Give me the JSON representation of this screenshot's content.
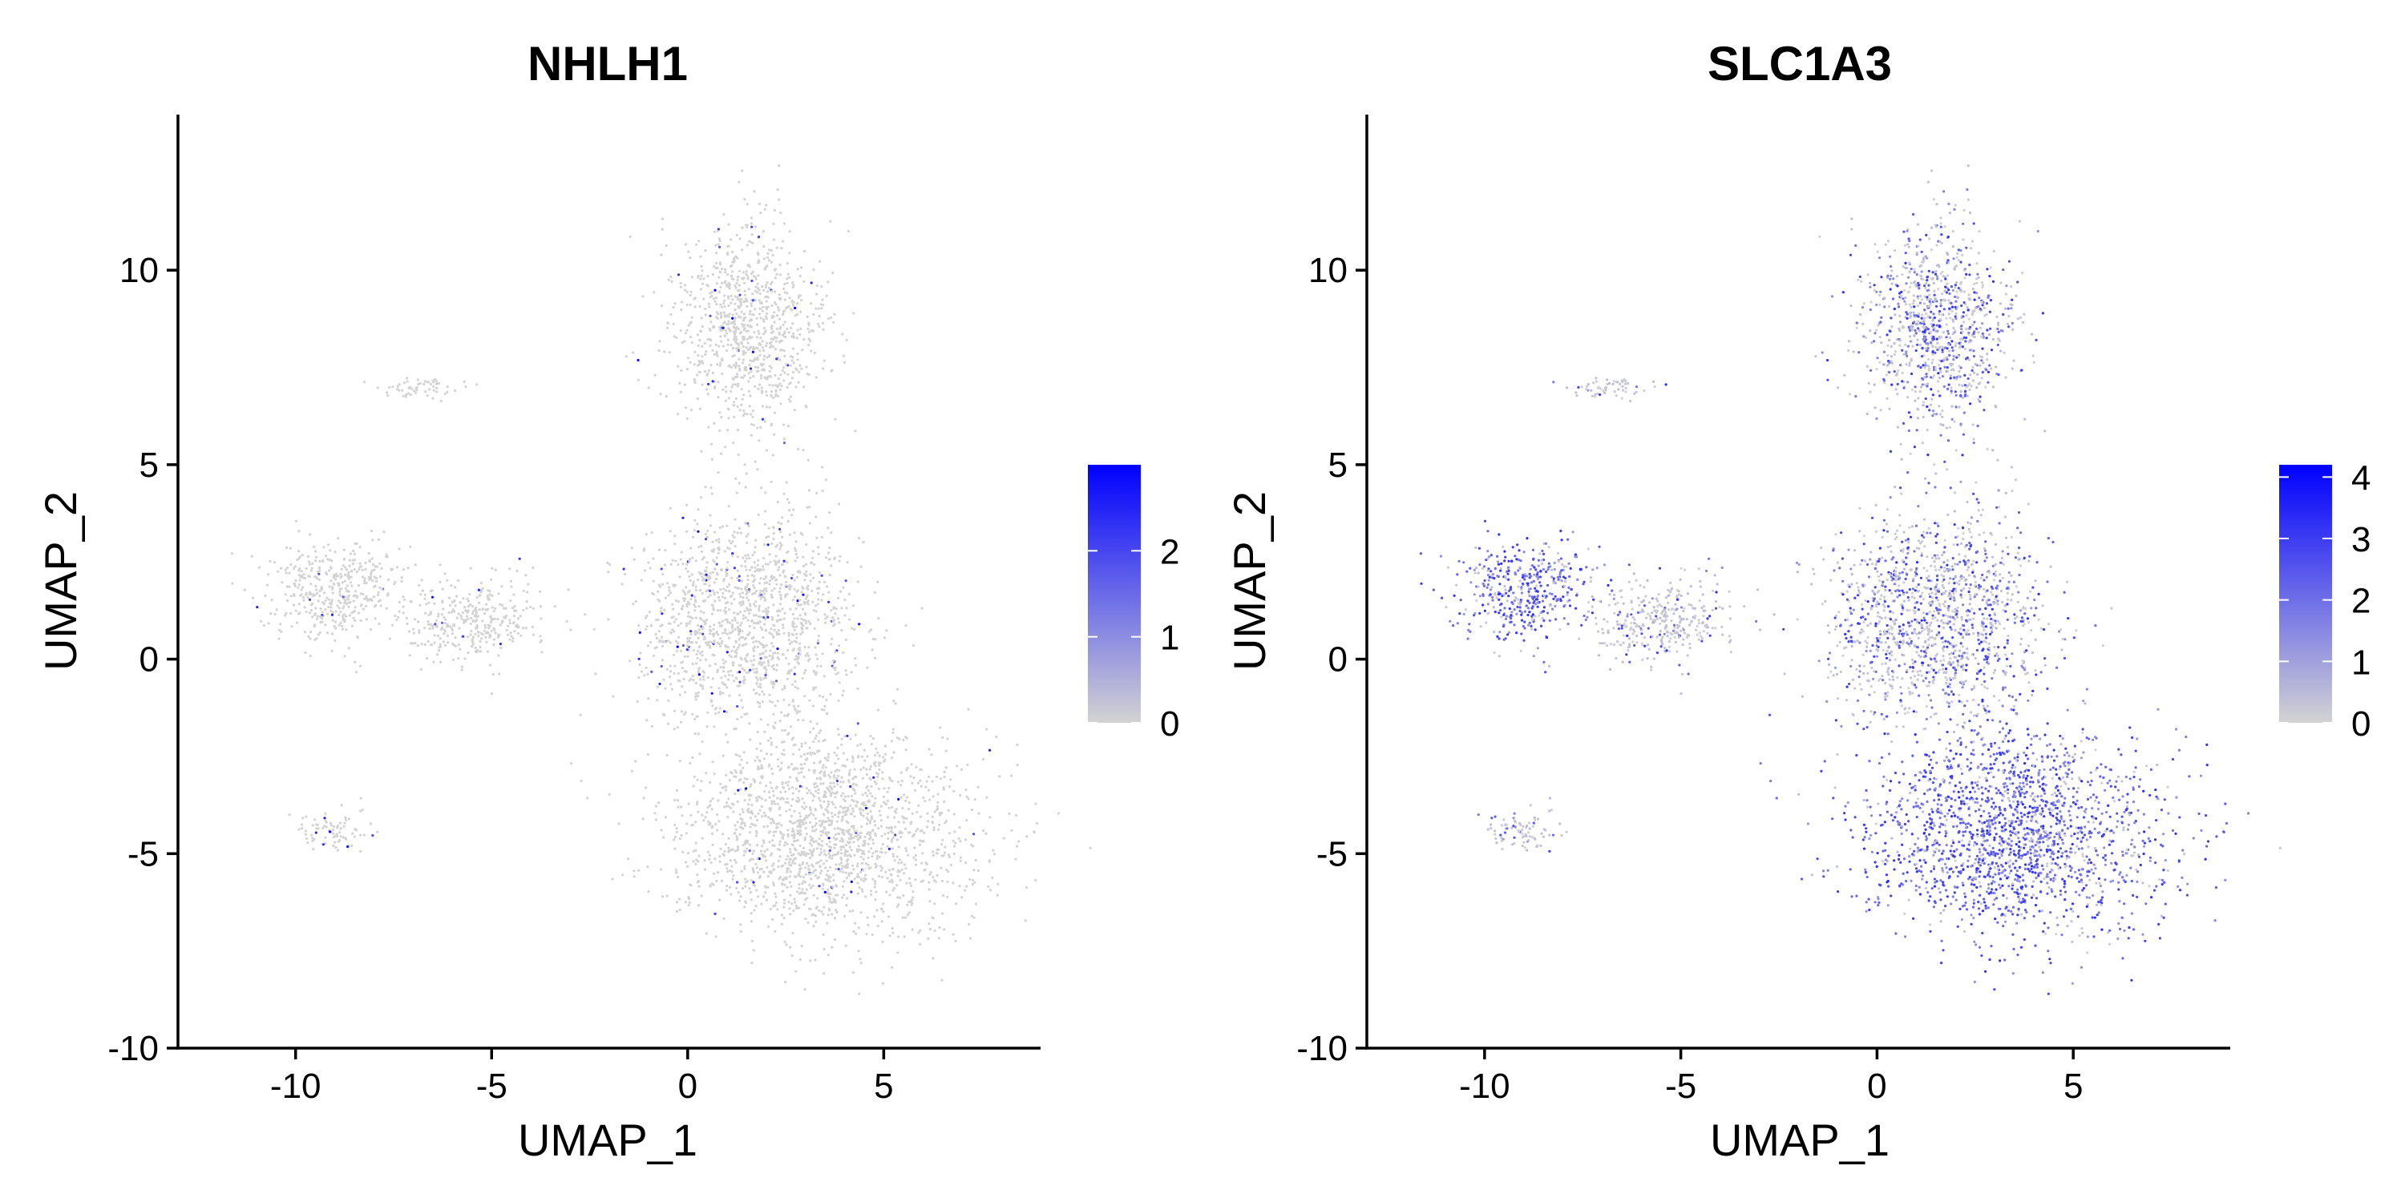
{
  "chart_data": [
    {
      "type": "scatter",
      "title": "NHLH1",
      "xlabel": "UMAP_1",
      "ylabel": "UMAP_2",
      "xlim": [
        -13,
        9
      ],
      "ylim": [
        -10,
        14
      ],
      "xticks": [
        -10,
        -5,
        0,
        5
      ],
      "yticks": [
        -10,
        -5,
        0,
        5,
        10
      ],
      "grid": false,
      "colorbar": {
        "min": 0,
        "max": 3,
        "ticks": [
          0,
          1,
          2
        ],
        "low_color": "#d3d3d3",
        "high_color": "#0000ff"
      },
      "expression": "sparse",
      "regions": [
        {
          "name": "upper-arm",
          "center": [
            1.5,
            8.5
          ],
          "spread": [
            1.6,
            2.3
          ],
          "mean_level": 0.03
        },
        {
          "name": "left-cluster",
          "center": [
            -9.0,
            1.8
          ],
          "spread": [
            1.5,
            1.1
          ],
          "mean_level": 0.02
        },
        {
          "name": "left-bridge",
          "center": [
            -5.5,
            1.0
          ],
          "spread": [
            1.5,
            0.9
          ],
          "mean_level": 0.02
        },
        {
          "name": "central-body",
          "center": [
            1.5,
            1.0
          ],
          "spread": [
            2.3,
            2.3
          ],
          "mean_level": 0.05
        },
        {
          "name": "lower-body",
          "center": [
            3.5,
            -4.5
          ],
          "spread": [
            3.2,
            2.2
          ],
          "mean_level": 0.02
        },
        {
          "name": "small-cluster",
          "center": [
            -9.0,
            -4.4
          ],
          "spread": [
            0.8,
            0.4
          ],
          "mean_level": 0.06
        },
        {
          "name": "thin-strip",
          "center": [
            -6.8,
            7.0
          ],
          "spread": [
            0.9,
            0.25
          ],
          "mean_level": 0.01
        }
      ]
    },
    {
      "type": "scatter",
      "title": "SLC1A3",
      "xlabel": "UMAP_1",
      "ylabel": "UMAP_2",
      "xlim": [
        -13,
        9
      ],
      "ylim": [
        -10,
        14
      ],
      "xticks": [
        -10,
        -5,
        0,
        5
      ],
      "yticks": [
        -10,
        -5,
        0,
        5,
        10
      ],
      "grid": false,
      "colorbar": {
        "min": 0,
        "max": 4.2,
        "ticks": [
          0,
          1,
          2,
          3,
          4
        ],
        "low_color": "#d3d3d3",
        "high_color": "#0000ff"
      },
      "expression": "broad",
      "regions": [
        {
          "name": "upper-arm",
          "center": [
            1.5,
            8.5
          ],
          "spread": [
            1.6,
            2.3
          ],
          "mean_level": 0.45
        },
        {
          "name": "left-cluster",
          "center": [
            -9.0,
            1.8
          ],
          "spread": [
            1.5,
            1.1
          ],
          "mean_level": 0.8
        },
        {
          "name": "left-bridge",
          "center": [
            -5.5,
            1.0
          ],
          "spread": [
            1.5,
            0.9
          ],
          "mean_level": 0.15
        },
        {
          "name": "central-body",
          "center": [
            1.5,
            1.0
          ],
          "spread": [
            2.3,
            2.3
          ],
          "mean_level": 0.45
        },
        {
          "name": "lower-body",
          "center": [
            3.5,
            -4.5
          ],
          "spread": [
            3.2,
            2.2
          ],
          "mean_level": 0.85
        },
        {
          "name": "small-cluster",
          "center": [
            -9.0,
            -4.4
          ],
          "spread": [
            0.8,
            0.4
          ],
          "mean_level": 0.2
        },
        {
          "name": "thin-strip",
          "center": [
            -6.8,
            7.0
          ],
          "spread": [
            0.9,
            0.25
          ],
          "mean_level": 0.15
        }
      ]
    }
  ]
}
